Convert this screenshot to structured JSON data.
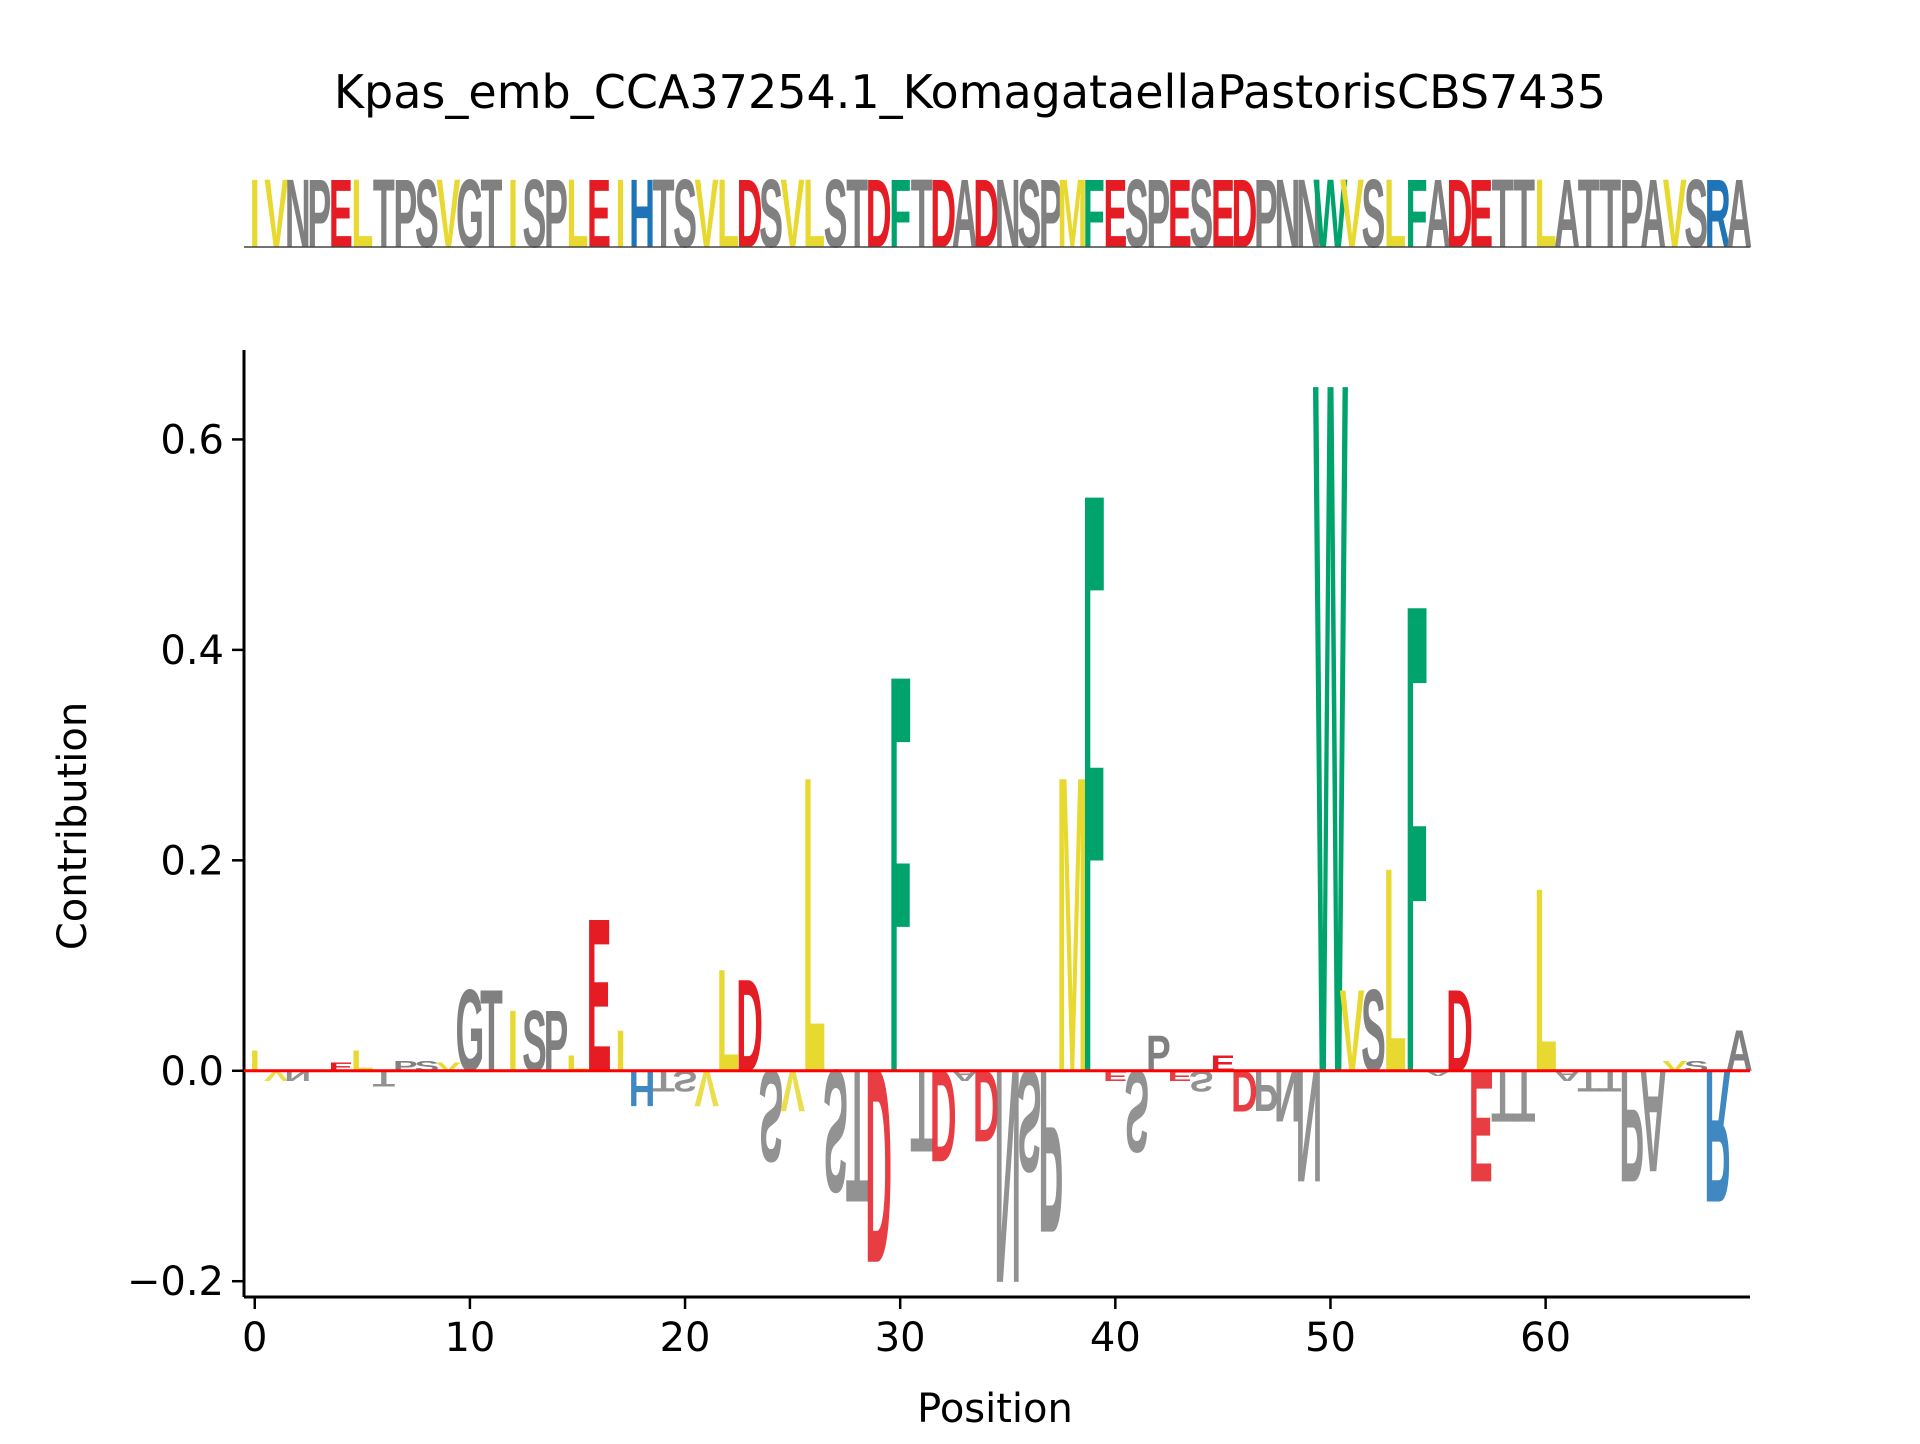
{
  "chart_data": {
    "type": "sequence-logo",
    "title": "Kpas_emb_CCA37254.1_KomagataellaPastorisCBS7435",
    "sequence": "IVNPELTPSVGTISPLEIHTSVLDSVLSTDFTDADNSPMFESPESEDPNNWVSLFADETTLATTPAVSRA",
    "xlabel": "Position",
    "ylabel": "Contribution",
    "xlim": [
      -0.5,
      69.5
    ],
    "ylim": [
      -0.215,
      0.685
    ],
    "xticks": [
      0,
      10,
      20,
      30,
      40,
      50,
      60
    ],
    "yticks": [
      -0.2,
      0.0,
      0.2,
      0.4,
      0.6
    ],
    "ytick_labels": [
      "−0.2",
      "0.0",
      "0.2",
      "0.4",
      "0.6"
    ],
    "contribution": [
      0.02,
      -0.01,
      -0.01,
      0.0,
      0.008,
      0.02,
      -0.015,
      0.01,
      0.01,
      0.008,
      0.08,
      0.08,
      0.06,
      0.06,
      0.06,
      0.015,
      0.15,
      0.04,
      -0.035,
      -0.02,
      -0.02,
      -0.035,
      0.1,
      0.09,
      -0.09,
      -0.04,
      0.29,
      -0.12,
      -0.13,
      -0.19,
      0.39,
      -0.08,
      -0.09,
      -0.01,
      -0.07,
      -0.21,
      -0.1,
      -0.16,
      0.29,
      0.57,
      -0.01,
      -0.08,
      0.035,
      -0.01,
      -0.02,
      0.015,
      -0.04,
      -0.04,
      -0.05,
      -0.11,
      0.68,
      0.08,
      0.08,
      0.2,
      0.46,
      -0.005,
      0.08,
      -0.11,
      -0.05,
      -0.05,
      0.18,
      -0.01,
      -0.02,
      -0.02,
      -0.11,
      -0.1,
      0.01,
      0.01,
      -0.13,
      0.04
    ],
    "colors": {
      "hydrophobic": "#e8d930",
      "aromatic": "#00a36c",
      "acidic": "#e51c23",
      "basic": "#1f74b8",
      "neutral": "#808080",
      "zero_line": "#ff0000"
    }
  }
}
